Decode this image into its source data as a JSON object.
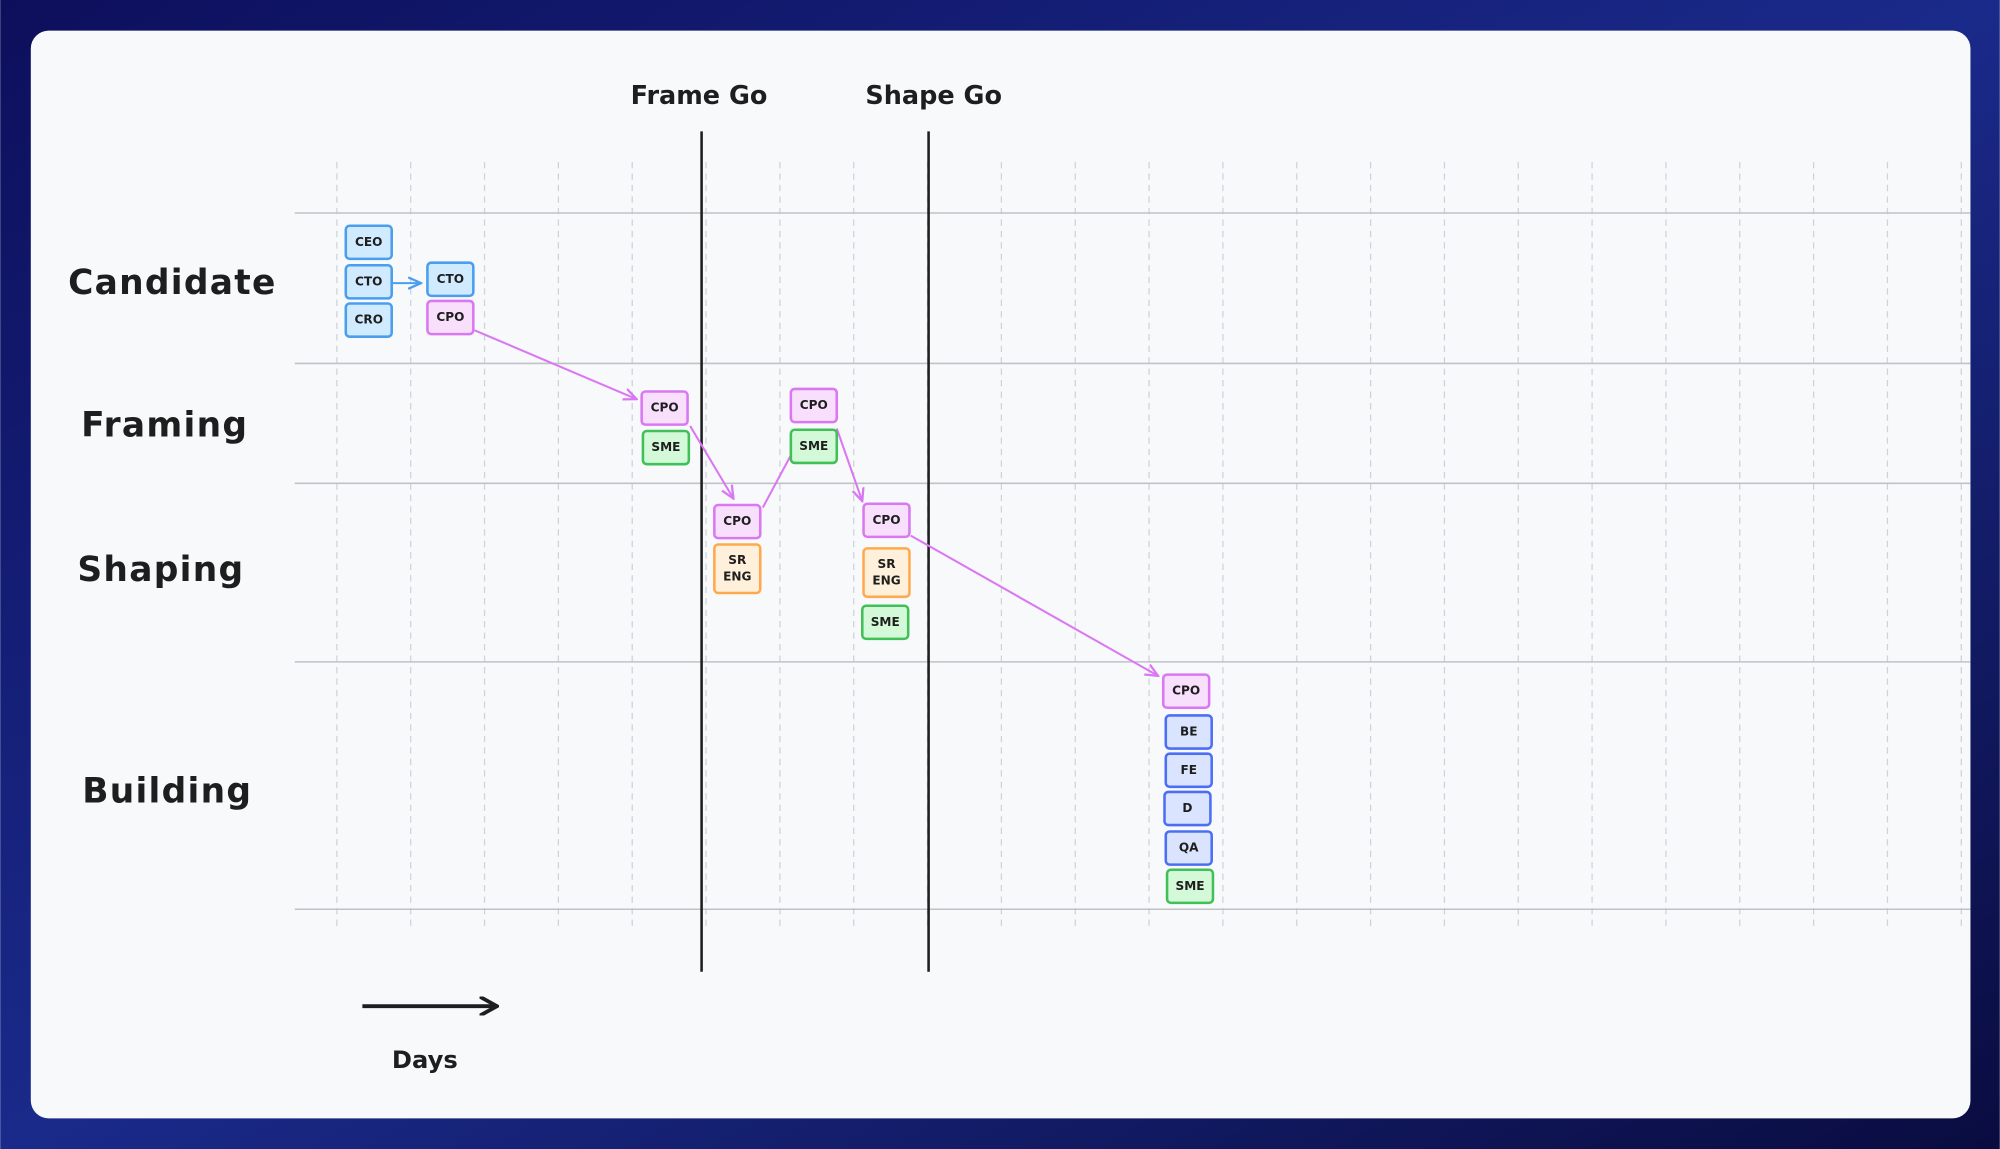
{
  "milestones": [
    "Frame Go",
    "Shape Go"
  ],
  "lanes": [
    "Candidate",
    "Framing",
    "Shaping",
    "Building"
  ],
  "axis_label": "Days",
  "nodes": [
    {
      "lines": [
        "CEO"
      ]
    },
    {
      "lines": [
        "CTO"
      ]
    },
    {
      "lines": [
        "CRO"
      ]
    },
    {
      "lines": [
        "CTO"
      ]
    },
    {
      "lines": [
        "CPO"
      ]
    },
    {
      "lines": [
        "CPO"
      ]
    },
    {
      "lines": [
        "SME"
      ]
    },
    {
      "lines": [
        "CPO"
      ]
    },
    {
      "lines": [
        "SR",
        "ENG"
      ]
    },
    {
      "lines": [
        "CPO"
      ]
    },
    {
      "lines": [
        "SME"
      ]
    },
    {
      "lines": [
        "CPO"
      ]
    },
    {
      "lines": [
        "SR",
        "ENG"
      ]
    },
    {
      "lines": [
        "SME"
      ]
    },
    {
      "lines": [
        "CPO"
      ]
    },
    {
      "lines": [
        "BE"
      ]
    },
    {
      "lines": [
        "FE"
      ]
    },
    {
      "lines": [
        "D"
      ]
    },
    {
      "lines": [
        "QA"
      ]
    },
    {
      "lines": [
        "SME"
      ]
    }
  ]
}
